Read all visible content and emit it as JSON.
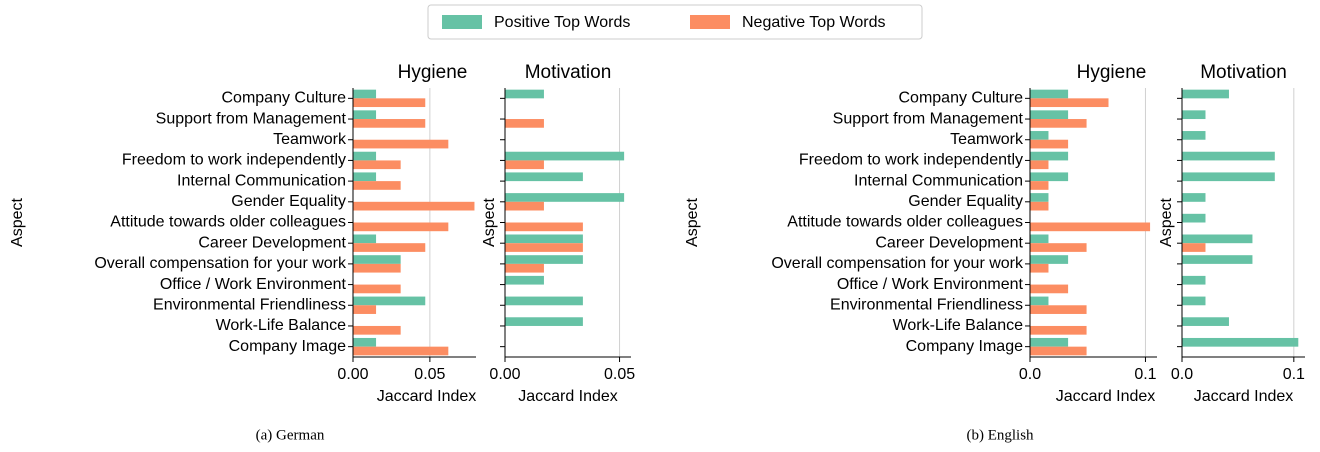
{
  "captions": [
    "(a) German",
    "(b) English"
  ],
  "chart_data": [
    {
      "type": "bar",
      "orientation": "horizontal",
      "title": "Hygiene",
      "xlabel": "Jaccard Index",
      "ylabel": "Aspect",
      "categories": [
        "Company Culture",
        "Support from Management",
        "Teamwork",
        "Freedom to work independently",
        "Internal Communication",
        "Gender Equality",
        "Attitude towards older colleagues",
        "Career Development",
        "Overall compensation for your work",
        "Office / Work Environment",
        "Environmental Friendliness",
        "Work-Life Balance",
        "Company Image"
      ],
      "series": [
        {
          "name": "Positive Top Words",
          "color": "#66c2a5",
          "values": [
            0.015,
            0.015,
            0,
            0.015,
            0.015,
            0,
            0,
            0.015,
            0.031,
            0,
            0.047,
            0,
            0.015
          ]
        },
        {
          "name": "Negative Top Words",
          "color": "#fc8d62",
          "values": [
            0.047,
            0.047,
            0.062,
            0.031,
            0.031,
            0.079,
            0.062,
            0.047,
            0.031,
            0.031,
            0.015,
            0.031,
            0.062
          ]
        }
      ],
      "xlim": [
        0,
        0.08
      ],
      "xticks": [
        {
          "value": 0,
          "label": "0.00"
        },
        0.05
      ],
      "grid": true
    },
    {
      "type": "bar",
      "orientation": "horizontal",
      "title": "Motivation",
      "xlabel": "Jaccard Index",
      "ylabel": "Aspect",
      "series": [
        {
          "color": "#66c2a5",
          "values": [
            0.017,
            0,
            0,
            0.052,
            0.034,
            0.052,
            0,
            0.034,
            0.034,
            0.017,
            0.034,
            0.034,
            0
          ]
        },
        {
          "color": "#fc8d62",
          "values": [
            0,
            0.017,
            0,
            0.017,
            0,
            0.017,
            0.034,
            0.034,
            0.017,
            0,
            0,
            0,
            0
          ]
        }
      ],
      "xlim": [
        0,
        0.055
      ],
      "xticks": [
        {
          "value": 0,
          "label": "0.00"
        },
        0.05
      ],
      "grid": true
    },
    {
      "type": "bar",
      "orientation": "horizontal",
      "title": "Hygiene",
      "xlabel": "Jaccard Index",
      "ylabel": "Aspect",
      "categories": [
        "Company Culture",
        "Support from Management",
        "Teamwork",
        "Freedom to work independently",
        "Internal Communication",
        "Gender Equality",
        "Attitude towards older colleagues",
        "Career Development",
        "Overall compensation for your work",
        "Office / Work Environment",
        "Environmental Friendliness",
        "Work-Life Balance",
        "Company Image"
      ],
      "series": [
        {
          "color": "#66c2a5",
          "values": [
            0.033,
            0.033,
            0.016,
            0.033,
            0.033,
            0.016,
            0,
            0.016,
            0.033,
            0,
            0.016,
            0,
            0.033
          ]
        },
        {
          "color": "#fc8d62",
          "values": [
            0.068,
            0.049,
            0.033,
            0.016,
            0.016,
            0.016,
            0.104,
            0.049,
            0.016,
            0.033,
            0.049,
            0.049,
            0.049
          ]
        }
      ],
      "xlim": [
        0,
        0.11
      ],
      "xticks": [
        {
          "value": 0,
          "label": "0.0"
        },
        0.1
      ],
      "grid": true
    },
    {
      "type": "bar",
      "orientation": "horizontal",
      "title": "Motivation",
      "xlabel": "Jaccard Index",
      "ylabel": "Aspect",
      "series": [
        {
          "color": "#66c2a5",
          "values": [
            0.042,
            0.021,
            0.021,
            0.083,
            0.083,
            0.021,
            0.021,
            0.063,
            0.063,
            0.021,
            0.021,
            0.042,
            0.104
          ]
        },
        {
          "color": "#fc8d62",
          "values": [
            0,
            0,
            0,
            0,
            0,
            0,
            0,
            0.021,
            0,
            0,
            0,
            0,
            0
          ]
        }
      ],
      "xlim": [
        0,
        0.11
      ],
      "xticks": [
        {
          "value": 0,
          "label": "0.0"
        },
        0.1
      ],
      "grid": true
    }
  ]
}
